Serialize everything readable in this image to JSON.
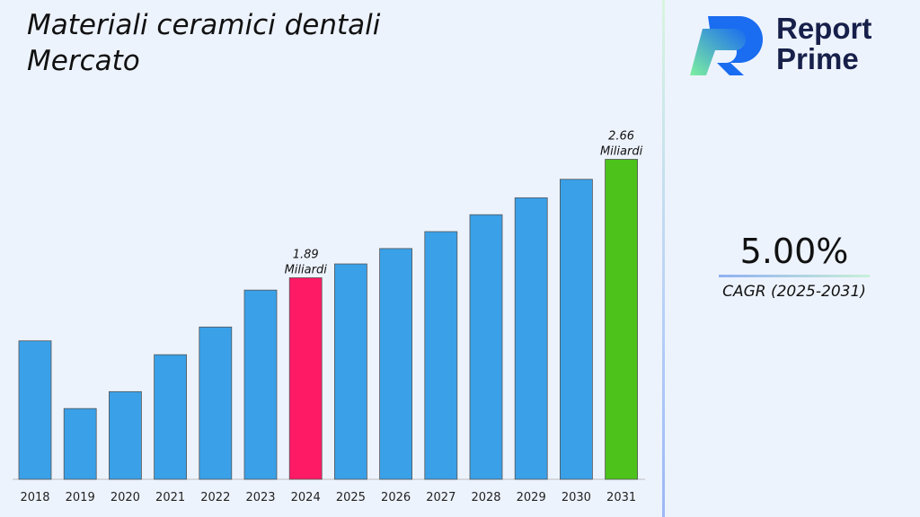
{
  "title": "Materiali ceramici dentali Mercato",
  "logo": {
    "line1": "Report",
    "line2": "Prime"
  },
  "cagr": {
    "value": "5.00%",
    "label": "CAGR (2025-2031)"
  },
  "colors": {
    "default_bar": "#3aa0e8",
    "highlight_2024": "#ff1a66",
    "highlight_2031": "#4cc21a"
  },
  "chart_data": {
    "type": "bar",
    "title": "Materiali ceramici dentali Mercato",
    "categories": [
      "2018",
      "2019",
      "2020",
      "2021",
      "2022",
      "2023",
      "2024",
      "2025",
      "2026",
      "2027",
      "2028",
      "2029",
      "2030",
      "2031"
    ],
    "values": [
      1.48,
      1.04,
      1.15,
      1.39,
      1.57,
      1.81,
      1.89,
      1.98,
      2.08,
      2.19,
      2.3,
      2.41,
      2.53,
      2.66
    ],
    "ylim": [
      0.58,
      2.8
    ],
    "grid": false,
    "data_labels": [
      {
        "category": "2024",
        "value": "1.89",
        "unit": "Miliardi"
      },
      {
        "category": "2031",
        "value": "2.66",
        "unit": "Miliardi"
      }
    ]
  }
}
